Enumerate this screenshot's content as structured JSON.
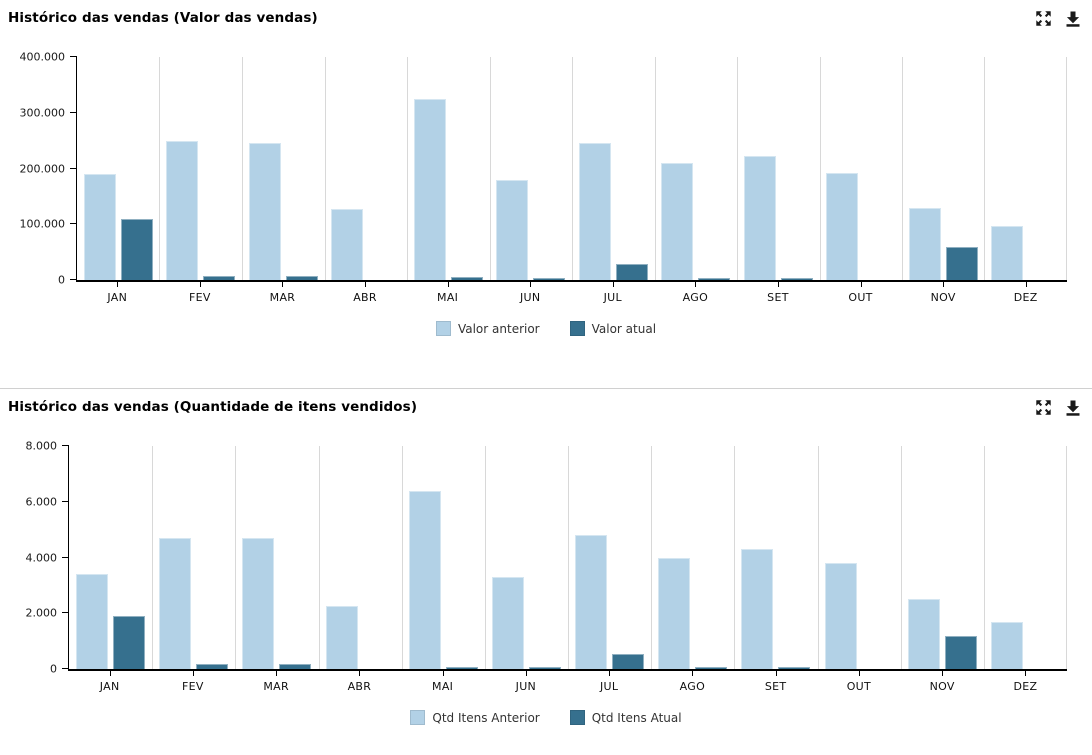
{
  "colors": {
    "bar_light": "#B2D1E6",
    "bar_dark": "#36708E",
    "axis": "#000000",
    "gridline": "#D8D8D8",
    "divider": "#D0D0D0",
    "icon": "#1A1A1A"
  },
  "panels": [
    {
      "icons": [
        "expand-icon",
        "download-icon"
      ]
    },
    {
      "icons": [
        "expand-icon",
        "download-icon"
      ]
    }
  ],
  "chart_data": [
    {
      "type": "bar",
      "title": "Histórico das vendas (Valor das vendas)",
      "categories": [
        "JAN",
        "FEV",
        "MAR",
        "ABR",
        "MAI",
        "JUN",
        "JUL",
        "AGO",
        "SET",
        "OUT",
        "NOV",
        "DEZ"
      ],
      "series": [
        {
          "name": "Valor anterior",
          "color": "#B2D1E6",
          "values": [
            190000,
            250000,
            246000,
            127000,
            324000,
            179000,
            246000,
            210000,
            223000,
            192000,
            129000,
            97000
          ]
        },
        {
          "name": "Valor atual",
          "color": "#36708E",
          "values": [
            110000,
            8000,
            8000,
            0,
            5000,
            3000,
            28000,
            3000,
            3000,
            0,
            60000,
            0
          ]
        }
      ],
      "ylim": [
        0,
        400000
      ],
      "ytick_labels": [
        "400.000",
        "300.000",
        "200.000",
        "100.000",
        "0"
      ],
      "grid": "vertical-only",
      "legend_position": "bottom"
    },
    {
      "type": "bar",
      "title": "Histórico das vendas (Quantidade de itens vendidos)",
      "categories": [
        "JAN",
        "FEV",
        "MAR",
        "ABR",
        "MAI",
        "JUN",
        "JUL",
        "AGO",
        "SET",
        "OUT",
        "NOV",
        "DEZ"
      ],
      "series": [
        {
          "name": "Qtd Itens Anterior",
          "color": "#B2D1E6",
          "values": [
            3400,
            4700,
            4700,
            2250,
            6400,
            3300,
            4800,
            4000,
            4300,
            3800,
            2500,
            1700
          ]
        },
        {
          "name": "Qtd Itens Atual",
          "color": "#36708E",
          "values": [
            1900,
            170,
            170,
            0,
            90,
            60,
            550,
            70,
            80,
            0,
            1200,
            0
          ]
        }
      ],
      "ylim": [
        0,
        8000
      ],
      "ytick_labels": [
        "8.000",
        "6.000",
        "4.000",
        "2.000",
        "0"
      ],
      "grid": "vertical-only",
      "legend_position": "bottom"
    }
  ]
}
